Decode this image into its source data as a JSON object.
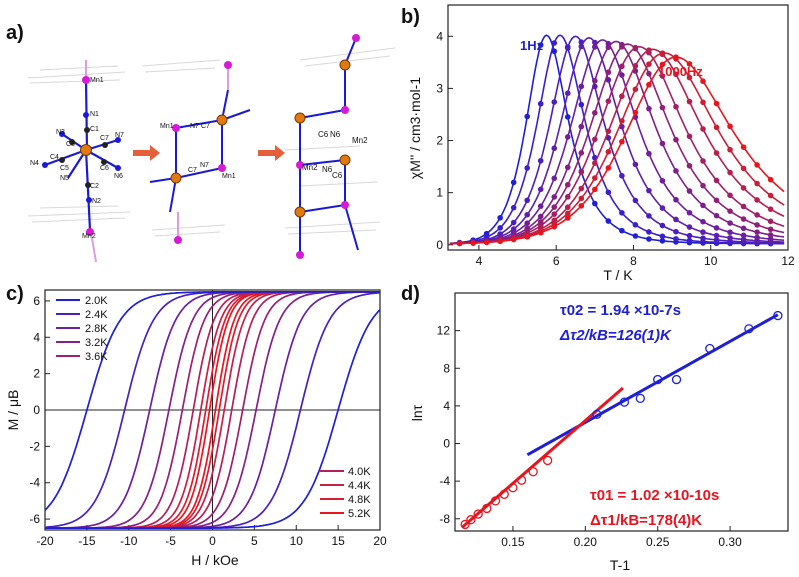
{
  "panels": {
    "a": {
      "letter": "a)",
      "labels": [
        "Mn1",
        "N1",
        "C1",
        "N3",
        "C3",
        "N7",
        "C7",
        "N4",
        "C4",
        "C5",
        "N5",
        "C6",
        "N6",
        "C2",
        "N2",
        "Mn2",
        "Mn1",
        "N7",
        "C7",
        "C7",
        "N7",
        "Mn1",
        "C6",
        "N6",
        "Mn2",
        "Mn2",
        "N6",
        "C6"
      ]
    },
    "b": {
      "letter": "b)"
    },
    "c": {
      "letter": "c)"
    },
    "d": {
      "letter": "d)"
    }
  },
  "colors": {
    "blue": "#1f1fd6",
    "red": "#e8141e",
    "axis": "#222222"
  },
  "chart_data": [
    {
      "id": "b",
      "type": "line",
      "xlabel": "T / K",
      "ylabel": "χM'' / cm3·mol-1",
      "xlim": [
        3.2,
        12
      ],
      "ylim": [
        -0.1,
        4.6
      ],
      "xticks": [
        4,
        6,
        8,
        10,
        12
      ],
      "yticks": [
        0,
        1,
        2,
        3,
        4
      ],
      "annotations": [
        {
          "text": "1Hz",
          "x": 5.7,
          "y": 4.25,
          "color": "#1f1fd6"
        },
        {
          "text": "1000Hz",
          "x": 9.3,
          "y": 3.75,
          "color": "#e8141e"
        }
      ],
      "series": [
        {
          "name": "1Hz",
          "peak_T": 5.75,
          "peak_chi": 4.02,
          "color": "#1f1fd6"
        },
        {
          "name": "",
          "peak_T": 6.1,
          "peak_chi": 4.02,
          "color": "#3a1fcc"
        },
        {
          "name": "",
          "peak_T": 6.5,
          "peak_chi": 4.0,
          "color": "#4b1fbf"
        },
        {
          "name": "",
          "peak_T": 6.85,
          "peak_chi": 3.97,
          "color": "#5c1fae"
        },
        {
          "name": "",
          "peak_T": 7.2,
          "peak_chi": 3.93,
          "color": "#6d1f9e"
        },
        {
          "name": "",
          "peak_T": 7.55,
          "peak_chi": 3.9,
          "color": "#7e1f8c"
        },
        {
          "name": "",
          "peak_T": 7.85,
          "peak_chi": 3.85,
          "color": "#901f78"
        },
        {
          "name": "",
          "peak_T": 8.15,
          "peak_chi": 3.8,
          "color": "#a31f63"
        },
        {
          "name": "",
          "peak_T": 8.5,
          "peak_chi": 3.75,
          "color": "#b61f4e"
        },
        {
          "name": "",
          "peak_T": 8.8,
          "peak_chi": 3.68,
          "color": "#cb1f38"
        },
        {
          "name": "1000Hz",
          "peak_T": 9.1,
          "peak_chi": 3.6,
          "color": "#e8141e"
        }
      ]
    },
    {
      "id": "c",
      "type": "line",
      "xlabel": "H / kOe",
      "ylabel": "M / μB",
      "xlim": [
        -20,
        20
      ],
      "ylim": [
        -6.6,
        6.6
      ],
      "xticks": [
        -20,
        -15,
        -10,
        -5,
        0,
        5,
        10,
        15,
        20
      ],
      "yticks": [
        -6,
        -4,
        -2,
        0,
        2,
        4,
        6
      ],
      "legend_top": [
        "2.0K",
        "2.4K",
        "2.8K",
        "3.2K",
        "3.6K"
      ],
      "legend_bottom": [
        "4.0K",
        "4.4K",
        "4.8K",
        "5.2K"
      ],
      "series": [
        {
          "name": "2.0K",
          "coercive_kOe": 15.0,
          "color": "#1f1fd6"
        },
        {
          "name": "2.4K",
          "coercive_kOe": 10.5,
          "color": "#4a1fbe"
        },
        {
          "name": "2.8K",
          "coercive_kOe": 7.5,
          "color": "#6a1fa2"
        },
        {
          "name": "3.2K",
          "coercive_kOe": 5.2,
          "color": "#85208a"
        },
        {
          "name": "3.6K",
          "coercive_kOe": 3.6,
          "color": "#9c1f72"
        },
        {
          "name": "4.0K",
          "coercive_kOe": 2.3,
          "color": "#b21f5a"
        },
        {
          "name": "4.4K",
          "coercive_kOe": 1.4,
          "color": "#c71f45"
        },
        {
          "name": "4.8K",
          "coercive_kOe": 0.8,
          "color": "#d91c30"
        },
        {
          "name": "5.2K",
          "coercive_kOe": 0.35,
          "color": "#e8141e"
        }
      ]
    },
    {
      "id": "d",
      "type": "scatter",
      "xlabel": "T-1",
      "ylabel": "lnτ",
      "xlim": [
        0.11,
        0.34
      ],
      "ylim": [
        -9.3,
        16
      ],
      "xticks": [
        0.15,
        0.2,
        0.25,
        0.3
      ],
      "yticks": [
        -8,
        -4,
        0,
        4,
        8,
        12
      ],
      "annotations": {
        "blue_line1": "τ02 = 1.94 ×10-7s",
        "blue_line2": "Δτ2/kB=126(1)K",
        "red_line1": "τ01 = 1.02 ×10-10s",
        "red_line2": "Δτ1/kB=178(4)K"
      },
      "points": [
        {
          "x": 0.117,
          "y": -8.6
        },
        {
          "x": 0.121,
          "y": -8.1
        },
        {
          "x": 0.126,
          "y": -7.5
        },
        {
          "x": 0.132,
          "y": -6.9
        },
        {
          "x": 0.138,
          "y": -6.1
        },
        {
          "x": 0.144,
          "y": -5.4
        },
        {
          "x": 0.15,
          "y": -4.7
        },
        {
          "x": 0.156,
          "y": -3.9
        },
        {
          "x": 0.164,
          "y": -3.0
        },
        {
          "x": 0.174,
          "y": -1.8
        },
        {
          "x": 0.208,
          "y": 3.1
        },
        {
          "x": 0.227,
          "y": 4.4
        },
        {
          "x": 0.238,
          "y": 4.8
        },
        {
          "x": 0.25,
          "y": 6.8
        },
        {
          "x": 0.263,
          "y": 6.8
        },
        {
          "x": 0.286,
          "y": 10.1
        },
        {
          "x": 0.313,
          "y": 12.2
        },
        {
          "x": 0.333,
          "y": 13.6
        }
      ],
      "fit_red": {
        "x": [
          0.115,
          0.226
        ],
        "y": [
          -8.9,
          5.9
        ],
        "color": "#e8141e"
      },
      "fit_blue": {
        "x": [
          0.16,
          0.333
        ],
        "y": [
          -1.2,
          13.7
        ],
        "color": "#1f1fd6"
      }
    }
  ]
}
